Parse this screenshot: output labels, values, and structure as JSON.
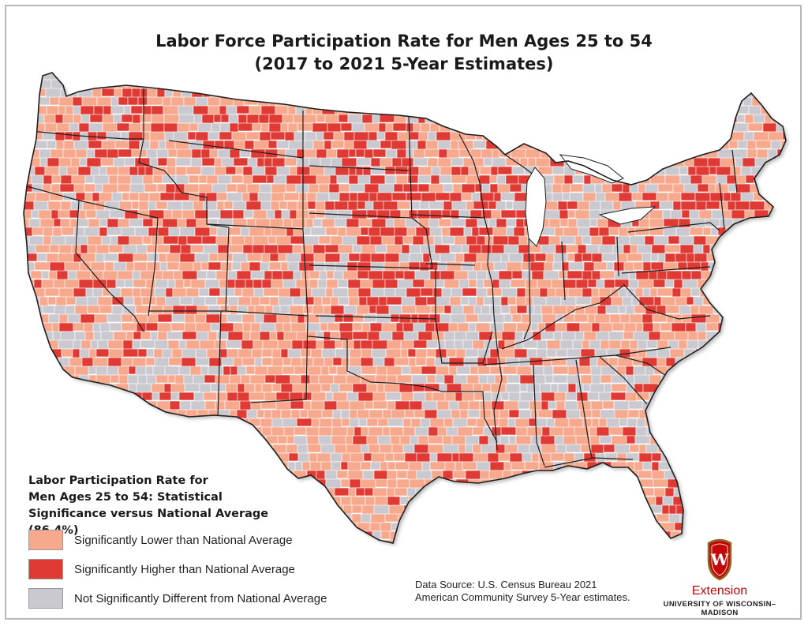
{
  "title_line1": "Labor Force Participation Rate for Men Ages 25 to 54",
  "title_line2": "(2017 to 2021 5-Year Estimates)",
  "legend": {
    "title_lines": [
      "Labor Participation Rate for",
      "Men Ages 25 to 54: Statistical",
      "Significance versus National Average (86.4%)"
    ],
    "items": [
      {
        "label": "Significantly Lower than National Average",
        "color": "#f7a98e"
      },
      {
        "label": "Significantly Higher than National Average",
        "color": "#e03a34"
      },
      {
        "label": "Not Significantly Different from National Average",
        "color": "#c9c9cf"
      }
    ]
  },
  "source_lines": [
    "Data Source: U.S. Census Bureau 2021",
    "American Community Survey 5-Year estimates."
  ],
  "logo": {
    "crest_letter": "W",
    "name": "Extension",
    "university": "UNIVERSITY OF WISCONSIN–MADISON",
    "brand_color": "#c5050c"
  },
  "colors": {
    "lower": "#f7a98e",
    "higher": "#e03a34",
    "not_different": "#c9c9cf",
    "state_border": "#1e1e1e",
    "county_border": "#ffffff"
  }
}
